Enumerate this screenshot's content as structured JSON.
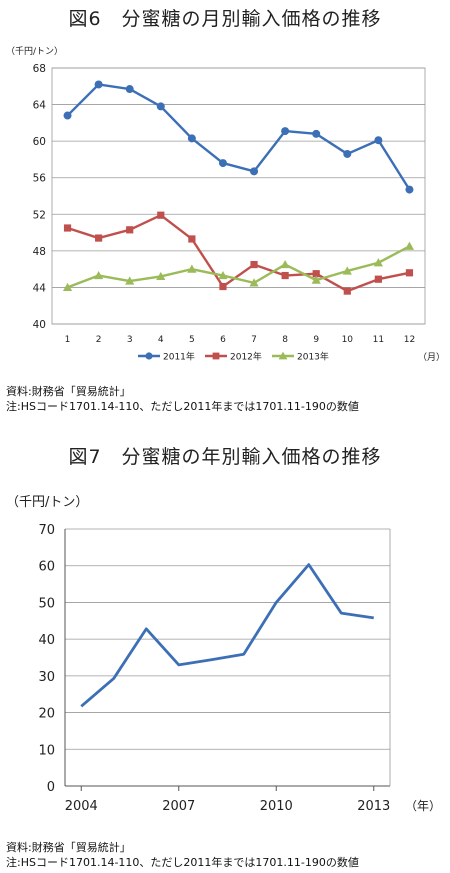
{
  "chart_data": [
    {
      "type": "line",
      "title": "図6　分蜜糖の月別輸入価格の推移",
      "ylabel": "（千円/トン）",
      "xlabel": "（月）",
      "x": [
        "1",
        "2",
        "3",
        "4",
        "5",
        "6",
        "7",
        "8",
        "9",
        "10",
        "11",
        "12"
      ],
      "ylim": [
        40,
        68
      ],
      "yticks": [
        "40",
        "44",
        "48",
        "52",
        "56",
        "60",
        "64",
        "68"
      ],
      "grid": true,
      "legend": "bottom",
      "series": [
        {
          "name": "2011年",
          "color": "#3c6fb6",
          "marker": "circle",
          "values": [
            62.8,
            66.2,
            65.7,
            63.8,
            60.3,
            57.6,
            56.7,
            61.1,
            60.8,
            58.6,
            60.1,
            54.7
          ]
        },
        {
          "name": "2012年",
          "color": "#c0504d",
          "marker": "square",
          "values": [
            50.5,
            49.4,
            50.3,
            51.9,
            49.3,
            44.1,
            46.5,
            45.3,
            45.5,
            43.6,
            44.9,
            45.6
          ]
        },
        {
          "name": "2013年",
          "color": "#9bbb59",
          "marker": "triangle",
          "values": [
            44.0,
            45.3,
            44.7,
            45.2,
            46.0,
            45.3,
            44.5,
            46.5,
            44.8,
            45.8,
            46.7,
            48.5
          ]
        }
      ]
    },
    {
      "type": "line",
      "title": "図7　分蜜糖の年別輸入価格の推移",
      "ylabel": "（千円/トン）",
      "xlabel": "（年）",
      "x": [
        2004,
        2005,
        2006,
        2007,
        2008,
        2009,
        2010,
        2011,
        2012,
        2013
      ],
      "xticks": [
        "2004",
        "2007",
        "2010",
        "2013"
      ],
      "ylim": [
        0,
        70
      ],
      "yticks": [
        "0",
        "10",
        "20",
        "30",
        "40",
        "50",
        "60",
        "70"
      ],
      "grid": true,
      "series": [
        {
          "color": "#3c6fb6",
          "values": [
            21.7,
            29.3,
            42.8,
            33.0,
            34.4,
            35.9,
            50.0,
            60.3,
            47.1,
            45.8
          ]
        }
      ]
    }
  ],
  "notes": {
    "source1": "資料:財務省「貿易統計」",
    "note1": "注:HSコード1701.14-110、ただし2011年までは1701.11-190の数値",
    "source2": "資料:財務省「貿易統計」",
    "note2": "注:HSコード1701.14-110、ただし2011年までは1701.11-190の数値"
  }
}
